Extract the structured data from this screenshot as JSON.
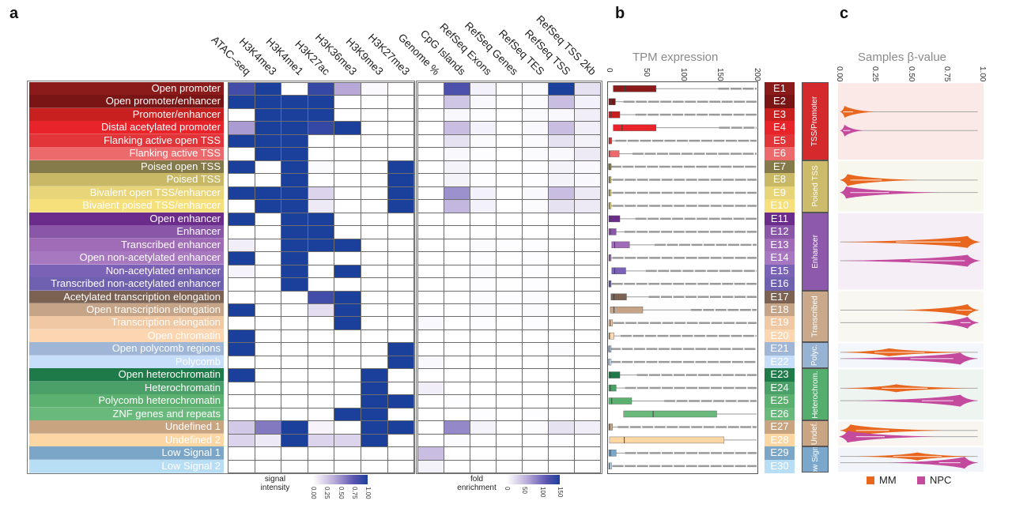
{
  "panels": {
    "a": "a",
    "b": "b",
    "c": "c"
  },
  "states": [
    {
      "name": "Open promoter",
      "id": "E1",
      "color": "#8b1a1a"
    },
    {
      "name": "Open promoter/enhancer",
      "id": "E2",
      "color": "#7a1516"
    },
    {
      "name": "Promoter/enhancer",
      "id": "E3",
      "color": "#c8201f"
    },
    {
      "name": "Distal acetylated promoter",
      "id": "E4",
      "color": "#e8242a"
    },
    {
      "name": "Flanking active open TSS",
      "id": "E5",
      "color": "#e2353a"
    },
    {
      "name": "Flanking active TSS",
      "id": "E6",
      "color": "#ec6a6c"
    },
    {
      "name": "Poised open TSS",
      "id": "E7",
      "color": "#857a4a"
    },
    {
      "name": "Poised TSS",
      "id": "E8",
      "color": "#c9b865"
    },
    {
      "name": "Bivalent open TSS/enhancer",
      "id": "E9",
      "color": "#e8d57a"
    },
    {
      "name": "Bivalent poised TSS/enhancer",
      "id": "E10",
      "color": "#f5e07c"
    },
    {
      "name": "Open enhancer",
      "id": "E11",
      "color": "#6b2c8c"
    },
    {
      "name": "Enhancer",
      "id": "E12",
      "color": "#8a56a8"
    },
    {
      "name": "Transcribed enhancer",
      "id": "E13",
      "color": "#a06cb8"
    },
    {
      "name": "Open non-acetylated enhancer",
      "id": "E14",
      "color": "#a778c0"
    },
    {
      "name": "Non-acetylated enhancer",
      "id": "E15",
      "color": "#7a62b6"
    },
    {
      "name": "Transcribed non-acetylated enhancer",
      "id": "E16",
      "color": "#7060b0"
    },
    {
      "name": "Acetylated transcription elongation",
      "id": "E17",
      "color": "#7c6252"
    },
    {
      "name": "Open transcription elongation",
      "id": "E18",
      "color": "#c6a488"
    },
    {
      "name": "Transcription elongation",
      "id": "E19",
      "color": "#f1c8a4"
    },
    {
      "name": "Open chromatin",
      "id": "E20",
      "color": "#fbd6b0"
    },
    {
      "name": "Open polycomb regions",
      "id": "E21",
      "color": "#9fb6d6"
    },
    {
      "name": "Polycomb",
      "id": "E22",
      "color": "#c6defa"
    },
    {
      "name": "Open heterochromatin",
      "id": "E23",
      "color": "#1e7a48"
    },
    {
      "name": "Heterochromatin",
      "id": "E24",
      "color": "#4aa068"
    },
    {
      "name": "Polycomb heterochromatin",
      "id": "E25",
      "color": "#5cb070"
    },
    {
      "name": "ZNF genes and repeats",
      "id": "E26",
      "color": "#6ab97c"
    },
    {
      "name": "Undefined 1",
      "id": "E27",
      "color": "#c8a480"
    },
    {
      "name": "Undefined 2",
      "id": "E28",
      "color": "#fcd7a4"
    },
    {
      "name": "Low Signal 1",
      "id": "E29",
      "color": "#7ba6c8"
    },
    {
      "name": "Low Signal 2",
      "id": "E30",
      "color": "#b8def6"
    }
  ],
  "groups": [
    {
      "label": "TSS/Promoter",
      "from": "E1",
      "to": "E6",
      "color": "#d42a2e",
      "bg": "#fbe9e8"
    },
    {
      "label": "Poised TSS",
      "from": "E7",
      "to": "E10",
      "color": "#cdbb6c",
      "bg": "#f8f7ee"
    },
    {
      "label": "Enhancer",
      "from": "E11",
      "to": "E16",
      "color": "#8d5aab",
      "bg": "#f6eef6"
    },
    {
      "label": "Transcribed",
      "from": "E17",
      "to": "E20",
      "color": "#c9a98a",
      "bg": "#f9f7f2"
    },
    {
      "label": "Polyc.",
      "from": "E21",
      "to": "E22",
      "color": "#97b3d3",
      "bg": "#f3f6fa"
    },
    {
      "label": "Heterochrom.",
      "from": "E23",
      "to": "E26",
      "color": "#55ad6e",
      "bg": "#eef5f1"
    },
    {
      "label": "Undef.",
      "from": "E27",
      "to": "E28",
      "color": "#c9a583",
      "bg": "#f9f6f1"
    },
    {
      "label": "Low Signal",
      "from": "E29",
      "to": "E30",
      "color": "#7aa7cb",
      "bg": "#f1f5f9"
    }
  ],
  "chart_data": [
    {
      "type": "heatmap",
      "panel": "a",
      "columns": [
        "ATAC–seq",
        "H3K4me3",
        "H3K4me1",
        "H3K27ac",
        "H3K36me3",
        "H3K9me3",
        "H3K27me3"
      ],
      "rows": "states",
      "legend_title": "signal intensity",
      "range": [
        0,
        1
      ],
      "legend_ticks": [
        "0.00",
        "0.25",
        "0.50",
        "0.75",
        "1.00"
      ],
      "values": [
        [
          0.85,
          1,
          0,
          0.9,
          0.4,
          0.03,
          0
        ],
        [
          1,
          1,
          1,
          1,
          0,
          0,
          0
        ],
        [
          0,
          1,
          1,
          1,
          0,
          0,
          0
        ],
        [
          0.45,
          1,
          1,
          0.9,
          1,
          0,
          0
        ],
        [
          1,
          1,
          1,
          0,
          0,
          0,
          0
        ],
        [
          0,
          1,
          1,
          0,
          0,
          0,
          0
        ],
        [
          1,
          0,
          1,
          0.02,
          0,
          0,
          1
        ],
        [
          0,
          0,
          1,
          0,
          0,
          0,
          1
        ],
        [
          1,
          1,
          1,
          0.2,
          0,
          0,
          1
        ],
        [
          0,
          1,
          1,
          0.1,
          0,
          0,
          1
        ],
        [
          1,
          0,
          1,
          1,
          0,
          0,
          0
        ],
        [
          0,
          0,
          1,
          1,
          0,
          0,
          0
        ],
        [
          0.08,
          0,
          1,
          1,
          1,
          0,
          0
        ],
        [
          1,
          0,
          1,
          0,
          0,
          0,
          0
        ],
        [
          0.05,
          0,
          1,
          0,
          1,
          0,
          0
        ],
        [
          0,
          0,
          1,
          0,
          0,
          0,
          0
        ],
        [
          0,
          0,
          0,
          0.85,
          1,
          0,
          0
        ],
        [
          1,
          0,
          0,
          0.15,
          1,
          0,
          0
        ],
        [
          0,
          0,
          0,
          0,
          1,
          0,
          0
        ],
        [
          1,
          0,
          0,
          0,
          0,
          0,
          0
        ],
        [
          1,
          0,
          0,
          0,
          0,
          0,
          1
        ],
        [
          0,
          0,
          0,
          0,
          0,
          0,
          1
        ],
        [
          1,
          0,
          0,
          0,
          0,
          1,
          0
        ],
        [
          0,
          0,
          0,
          0,
          0,
          1,
          0
        ],
        [
          0,
          0,
          0,
          0,
          0,
          1,
          1
        ],
        [
          0,
          0,
          0,
          0,
          1,
          1,
          0
        ],
        [
          0.25,
          0.6,
          1,
          0.05,
          0,
          1,
          1
        ],
        [
          0.2,
          0.1,
          1,
          0.2,
          0.2,
          1,
          0
        ],
        [
          0,
          0,
          0,
          0,
          0,
          0,
          0
        ],
        [
          0,
          0,
          0,
          0,
          0,
          0,
          0
        ]
      ]
    },
    {
      "type": "heatmap",
      "panel": "a",
      "columns": [
        "Genome %",
        "CpG Islands",
        "RefSeq Exons",
        "RefSeq Genes",
        "RefSeq TES",
        "RefSeq TSS",
        "RefSeq TSS 2kb"
      ],
      "rows": "states",
      "legend_title": "fold enrichment",
      "range": [
        0,
        150
      ],
      "legend_ticks": [
        "0",
        "50",
        "100",
        "150"
      ],
      "values": [
        [
          0,
          120,
          10,
          0,
          3,
          150,
          20
        ],
        [
          0,
          40,
          5,
          0,
          3,
          45,
          10
        ],
        [
          0,
          5,
          2,
          0,
          3,
          5,
          12
        ],
        [
          0,
          45,
          10,
          0,
          5,
          45,
          12
        ],
        [
          0,
          20,
          3,
          0,
          3,
          20,
          8
        ],
        [
          0,
          5,
          2,
          0,
          3,
          5,
          15
        ],
        [
          0,
          8,
          2,
          0,
          2,
          8,
          5
        ],
        [
          0,
          8,
          2,
          0,
          2,
          8,
          5
        ],
        [
          0,
          75,
          10,
          0,
          5,
          45,
          15
        ],
        [
          0,
          50,
          10,
          0,
          3,
          20,
          15
        ],
        [
          0,
          0,
          0,
          0,
          0,
          0,
          0
        ],
        [
          0,
          0,
          1,
          1,
          0,
          0,
          0
        ],
        [
          0,
          0,
          3,
          2,
          2,
          0,
          0
        ],
        [
          0,
          0,
          2,
          1,
          2,
          0,
          0
        ],
        [
          0,
          0,
          3,
          1,
          2,
          0,
          0
        ],
        [
          0,
          0,
          2,
          1,
          2,
          0,
          0
        ],
        [
          0,
          0,
          3,
          2,
          3,
          0,
          0
        ],
        [
          0,
          0,
          3,
          2,
          3,
          0,
          0
        ],
        [
          5,
          0,
          2,
          1,
          2,
          0,
          0
        ],
        [
          0,
          0,
          0,
          0,
          0,
          0,
          0
        ],
        [
          0,
          0,
          0,
          0,
          0,
          3,
          0
        ],
        [
          5,
          0,
          0,
          0,
          0,
          0,
          0
        ],
        [
          0,
          0,
          0,
          0,
          0,
          0,
          0
        ],
        [
          12,
          0,
          0,
          0,
          0,
          0,
          0
        ],
        [
          0,
          2,
          0,
          0,
          0,
          0,
          0
        ],
        [
          0,
          0,
          2,
          0,
          2,
          0,
          0
        ],
        [
          0,
          80,
          8,
          0,
          3,
          20,
          12
        ],
        [
          0,
          3,
          0,
          0,
          0,
          2,
          0
        ],
        [
          45,
          0,
          0,
          0,
          0,
          0,
          0
        ],
        [
          8,
          0,
          0,
          0,
          0,
          0,
          0
        ]
      ]
    },
    {
      "type": "box",
      "panel": "b",
      "title": "TPM expression",
      "xlim": [
        0,
        200
      ],
      "ticks": [
        "0",
        "50",
        "100",
        "150",
        "200"
      ],
      "categories": [
        "E1",
        "E2",
        "E3",
        "E4",
        "E5",
        "E6",
        "E7",
        "E8",
        "E9",
        "E10",
        "E11",
        "E12",
        "E13",
        "E14",
        "E15",
        "E16",
        "E17",
        "E18",
        "E19",
        "E20",
        "E21",
        "E22",
        "E23",
        "E24",
        "E25",
        "E26",
        "E27",
        "E28",
        "E29",
        "E30"
      ],
      "boxes": [
        {
          "q1": 6,
          "median": 22,
          "q3": 64,
          "outliers_from": 148
        },
        {
          "q1": 0,
          "median": 3,
          "q3": 9,
          "outliers_from": 20
        },
        {
          "q1": 0,
          "median": 3,
          "q3": 15,
          "outliers_from": 36
        },
        {
          "q1": 6,
          "median": 18,
          "q3": 64,
          "outliers_from": 149
        },
        {
          "q1": 0,
          "median": 1,
          "q3": 4,
          "outliers_from": 9
        },
        {
          "q1": 0,
          "median": 1,
          "q3": 14,
          "outliers_from": 32
        },
        {
          "q1": 0,
          "median": 0,
          "q3": 1,
          "outliers_from": 2
        },
        {
          "q1": 0,
          "median": 1,
          "q3": 3,
          "outliers_from": 5
        },
        {
          "q1": 0,
          "median": 1,
          "q3": 3,
          "outliers_from": 5
        },
        {
          "q1": 0,
          "median": 1,
          "q3": 3,
          "outliers_from": 5
        },
        {
          "q1": 0,
          "median": 2,
          "q3": 15,
          "outliers_from": 36
        },
        {
          "q1": 0,
          "median": 2,
          "q3": 10,
          "outliers_from": 21
        },
        {
          "q1": 4,
          "median": 8,
          "q3": 28,
          "outliers_from": 62
        },
        {
          "q1": 0,
          "median": 1,
          "q3": 3,
          "outliers_from": 5
        },
        {
          "q1": 4,
          "median": 8,
          "q3": 23,
          "outliers_from": 50
        },
        {
          "q1": 0,
          "median": 1,
          "q3": 2,
          "outliers_from": 4
        },
        {
          "q1": 3,
          "median": 7,
          "q3": 24,
          "outliers_from": 54
        },
        {
          "q1": 2,
          "median": 7,
          "q3": 46,
          "outliers_from": 111
        },
        {
          "q1": 0,
          "median": 2,
          "q3": 5,
          "outliers_from": 6
        },
        {
          "q1": 0,
          "median": 1,
          "q3": 7,
          "outliers_from": 16
        },
        {
          "q1": 0,
          "median": 0,
          "q3": 1,
          "outliers_from": 1
        },
        {
          "q1": 0,
          "median": 0,
          "q3": 1,
          "outliers_from": 1
        },
        {
          "q1": 0,
          "median": 2,
          "q3": 15,
          "outliers_from": 38
        },
        {
          "q1": 0,
          "median": 2,
          "q3": 10,
          "outliers_from": 22
        },
        {
          "q1": 0,
          "median": 4,
          "q3": 31,
          "outliers_from": 75
        },
        {
          "q1": 20,
          "median": 60,
          "q3": 146,
          "outliers_from": null
        },
        {
          "q1": 0,
          "median": 1,
          "q3": 5,
          "outliers_from": 12
        },
        {
          "q1": 1,
          "median": 21,
          "q3": 156,
          "outliers_from": null
        },
        {
          "q1": 0,
          "median": 2,
          "q3": 10,
          "outliers_from": 22
        },
        {
          "q1": 0,
          "median": 1,
          "q3": 4,
          "outliers_from": 5
        }
      ]
    },
    {
      "type": "violin",
      "panel": "c",
      "title": "Samples β-value",
      "xlim": [
        0,
        1
      ],
      "ticks": [
        "0.00",
        "0.25",
        "0.50",
        "0.75",
        "1.00"
      ],
      "legend": [
        {
          "label": "MM",
          "color": "#e8661e"
        },
        {
          "label": "NPC",
          "color": "#c44a9e"
        }
      ],
      "series": [
        {
          "name": "MM",
          "by_group": [
            {
              "mode": 0.04,
              "range": [
                0.01,
                0.25
              ],
              "iqr": [
                0.03,
                0.1
              ]
            },
            {
              "mode": 0.06,
              "range": [
                0.01,
                0.55
              ],
              "iqr": [
                0.08,
                0.3
              ]
            },
            {
              "mode": 0.9,
              "range": [
                0.02,
                0.99
              ],
              "iqr": [
                0.4,
                0.85
              ]
            },
            {
              "mode": 0.9,
              "range": [
                0.45,
                0.98
              ],
              "iqr": [
                0.82,
                0.93
              ]
            },
            {
              "mode": 0.35,
              "range": [
                0.02,
                0.9
              ],
              "iqr": [
                0.25,
                0.6
              ]
            },
            {
              "mode": 0.4,
              "range": [
                0.02,
                0.92
              ],
              "iqr": [
                0.3,
                0.62
              ]
            },
            {
              "mode": 0.08,
              "range": [
                0.01,
                0.72
              ],
              "iqr": [
                0.12,
                0.35
              ]
            },
            {
              "mode": 0.55,
              "range": [
                0.12,
                0.92
              ],
              "iqr": [
                0.38,
                0.72
              ]
            }
          ]
        },
        {
          "name": "NPC",
          "by_group": [
            {
              "mode": 0.04,
              "range": [
                0.01,
                0.17
              ],
              "iqr": [
                0.03,
                0.08
              ]
            },
            {
              "mode": 0.05,
              "range": [
                0.01,
                0.7
              ],
              "iqr": [
                0.08,
                0.35
              ]
            },
            {
              "mode": 0.9,
              "range": [
                0.02,
                0.99
              ],
              "iqr": [
                0.5,
                0.88
              ]
            },
            {
              "mode": 0.9,
              "range": [
                0.6,
                0.98
              ],
              "iqr": [
                0.85,
                0.92
              ]
            },
            {
              "mode": 0.85,
              "range": [
                0.02,
                0.97
              ],
              "iqr": [
                0.5,
                0.8
              ]
            },
            {
              "mode": 0.85,
              "range": [
                0.12,
                0.97
              ],
              "iqr": [
                0.58,
                0.8
              ]
            },
            {
              "mode": 0.06,
              "range": [
                0.0,
                0.67
              ],
              "iqr": [
                0.12,
                0.32
              ]
            },
            {
              "mode": 0.88,
              "range": [
                0.35,
                0.97
              ],
              "iqr": [
                0.7,
                0.85
              ]
            }
          ]
        }
      ]
    }
  ]
}
